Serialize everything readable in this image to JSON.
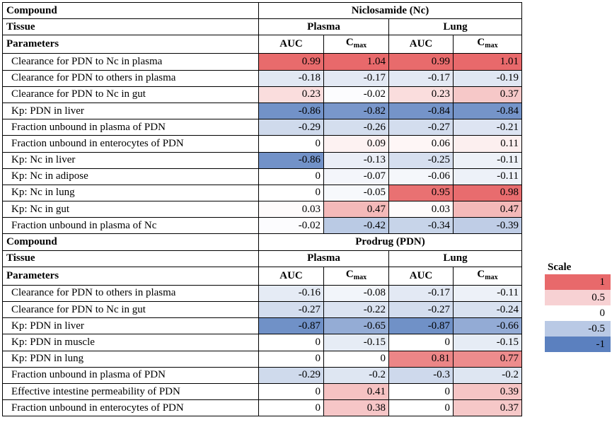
{
  "colors": {
    "strong_positive": "#e8696b",
    "mild_positive": "#f7d1d3",
    "neutral": "#ffffff",
    "mild_negative": "#c3cfe7",
    "strong_negative": "#5b80bf"
  },
  "sections": [
    {
      "compound_label": "Compound",
      "compound": "Niclosamide (Nc)",
      "tissue_label": "Tissue",
      "tissues": [
        "Plasma",
        "Lung"
      ],
      "parameters_label": "Parameters",
      "metrics": [
        "AUC",
        "C",
        "AUC",
        "C"
      ],
      "metric_subs": [
        "",
        "max",
        "",
        "max"
      ],
      "rows": [
        {
          "param": "Clearance for PDN to Nc in plasma",
          "values": [
            "0.99",
            "1.04",
            "0.99",
            "1.01"
          ]
        },
        {
          "param": "Clearance for PDN to others in plasma",
          "values": [
            "-0.18",
            "-0.17",
            "-0.17",
            "-0.19"
          ]
        },
        {
          "param": "Clearance for PDN to Nc in gut",
          "values": [
            "0.23",
            "-0.02",
            "0.23",
            "0.37"
          ]
        },
        {
          "param": "Kp: PDN in liver",
          "values": [
            "-0.86",
            "-0.82",
            "-0.84",
            "-0.84"
          ]
        },
        {
          "param": "Fraction unbound in plasma of PDN",
          "values": [
            "-0.29",
            "-0.26",
            "-0.27",
            "-0.21"
          ]
        },
        {
          "param": "Fraction unbound in enterocytes of PDN",
          "values": [
            "0",
            "0.09",
            "0.06",
            "0.11"
          ]
        },
        {
          "param": "Kp: Nc in liver",
          "values": [
            "-0.86",
            "-0.13",
            "-0.25",
            "-0.11"
          ]
        },
        {
          "param": "Kp: Nc in adipose",
          "values": [
            "0",
            "-0.07",
            "-0.06",
            "-0.11"
          ]
        },
        {
          "param": "Kp: Nc in lung",
          "values": [
            "0",
            "-0.05",
            "0.95",
            "0.98"
          ]
        },
        {
          "param": "Kp: Nc in gut",
          "values": [
            "0.03",
            "0.47",
            "0.03",
            "0.47"
          ]
        },
        {
          "param": "Fraction unbound in plasma of Nc",
          "values": [
            "-0.02",
            "-0.42",
            "-0.34",
            "-0.39"
          ]
        }
      ]
    },
    {
      "compound_label": "Compound",
      "compound": "Prodrug (PDN)",
      "tissue_label": "Tissue",
      "tissues": [
        "Plasma",
        "Lung"
      ],
      "parameters_label": "Parameters",
      "metrics": [
        "AUC",
        "C",
        "AUC",
        "C"
      ],
      "metric_subs": [
        "",
        "max",
        "",
        "max"
      ],
      "rows": [
        {
          "param": "Clearance for PDN to others in plasma",
          "values": [
            "-0.16",
            "-0.08",
            "-0.17",
            "-0.11"
          ]
        },
        {
          "param": "Clearance for PDN to Nc in gut",
          "values": [
            "-0.27",
            "-0.22",
            "-0.27",
            "-0.24"
          ]
        },
        {
          "param": "Kp: PDN in liver",
          "values": [
            "-0.87",
            "-0.65",
            "-0.87",
            "-0.66"
          ]
        },
        {
          "param": "Kp: PDN in muscle",
          "values": [
            "0",
            "-0.15",
            "0",
            "-0.15"
          ]
        },
        {
          "param": "Kp: PDN in lung",
          "values": [
            "0",
            "0",
            "0.81",
            "0.77"
          ]
        },
        {
          "param": "Fraction unbound in plasma of PDN",
          "values": [
            "-0.29",
            "-0.2",
            "-0.3",
            "-0.2"
          ]
        },
        {
          "param": "Effective intestine permeability of PDN",
          "values": [
            "0",
            "0.41",
            "0",
            "0.39"
          ]
        },
        {
          "param": "Fraction unbound in enterocytes of PDN",
          "values": [
            "0",
            "0.38",
            "0",
            "0.37"
          ]
        }
      ]
    }
  ],
  "scale": {
    "title": "Scale",
    "items": [
      {
        "label": "1",
        "color": "#e8696b"
      },
      {
        "label": "0.5",
        "color": "#f7d1d3"
      },
      {
        "label": "0",
        "color": "#ffffff"
      },
      {
        "label": "-0.5",
        "color": "#b9c9e5"
      },
      {
        "label": "-1",
        "color": "#5b80bf"
      }
    ]
  }
}
